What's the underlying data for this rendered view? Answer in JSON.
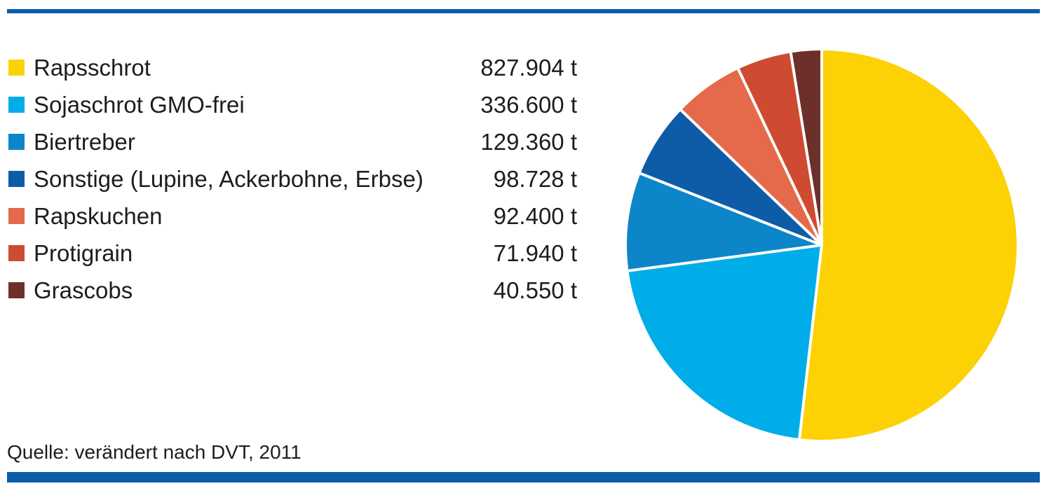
{
  "page": {
    "background": "#ffffff",
    "accent_bar_color": "#0b5da9",
    "text_color": "#1d1d1b",
    "source_text": "Quelle: verändert nach DVT, 2011"
  },
  "chart_data": {
    "type": "pie",
    "title": "",
    "unit": "t",
    "total": 1597482,
    "start_angle_deg": 0,
    "direction": "clockwise",
    "legend_position": "left",
    "divider_color": "#ffffff",
    "divider_width": 4,
    "items": [
      {
        "label": "Rapsschrot",
        "value": 827904,
        "display_value": "827.904 t",
        "color": "#fcd204"
      },
      {
        "label": "Sojaschrot GMO-frei",
        "value": 336600,
        "display_value": "336.600 t",
        "color": "#00ade8"
      },
      {
        "label": "Biertreber",
        "value": 129360,
        "display_value": "129.360 t",
        "color": "#0c85c9"
      },
      {
        "label": "Sonstige (Lupine, Ackerbohne, Erbse)",
        "value": 98728,
        "display_value": "98.728 t",
        "color": "#0e5ca7"
      },
      {
        "label": "Rapskuchen",
        "value": 92400,
        "display_value": "92.400 t",
        "color": "#e56a4b"
      },
      {
        "label": "Protigrain",
        "value": 71940,
        "display_value": "71.940 t",
        "color": "#ce4b31"
      },
      {
        "label": "Grascobs",
        "value": 40550,
        "display_value": "40.550 t",
        "color": "#6d2f2a"
      }
    ]
  }
}
